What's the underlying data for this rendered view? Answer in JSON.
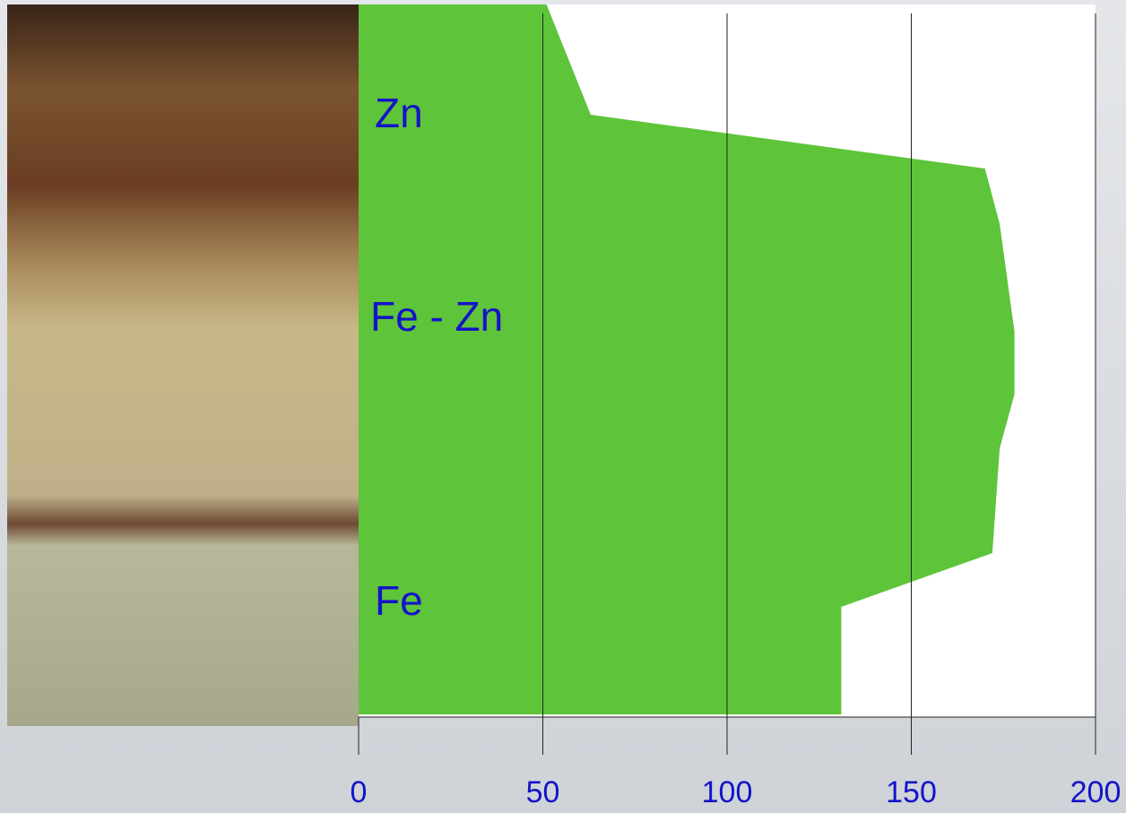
{
  "chart_data": {
    "type": "area",
    "orientation": "horizontal",
    "values": [
      51,
      63,
      170,
      174,
      178,
      178,
      174,
      172,
      131,
      131
    ],
    "color": "#5ec43a",
    "xlim": [
      0,
      200
    ],
    "xticks": [
      0,
      50,
      100,
      150,
      200
    ],
    "grid": true,
    "annotations": [
      "Zn",
      "Fe - Zn",
      "Fe"
    ]
  }
}
